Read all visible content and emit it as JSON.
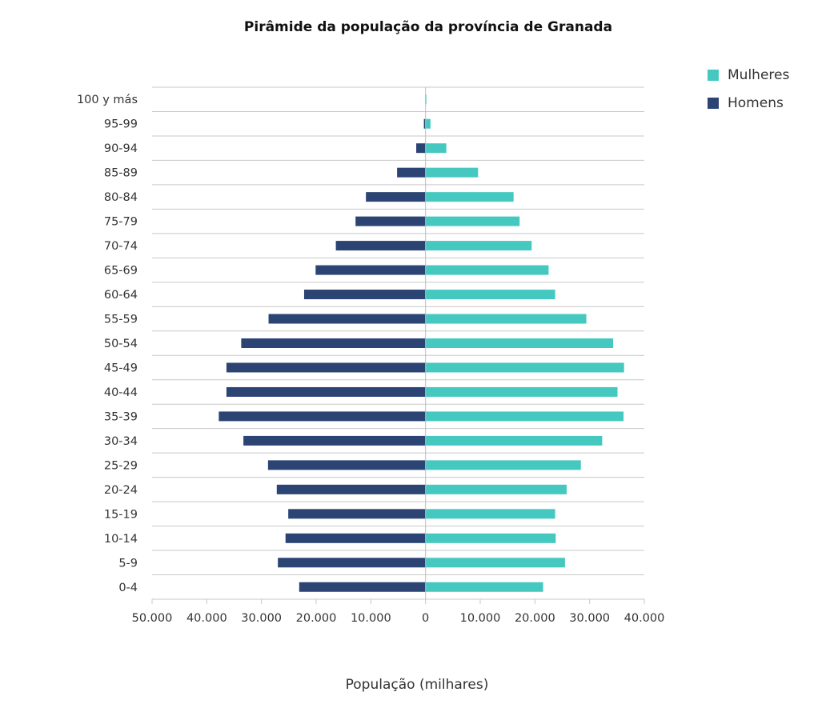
{
  "chart_data": {
    "type": "bar",
    "orientation": "horizontal",
    "subtype": "population-pyramid",
    "title": "Pirâmide da população da província de Granada",
    "xlabel": "População (milhares)",
    "ylabel": "",
    "categories": [
      "0-4",
      "5-9",
      "10-14",
      "15-19",
      "20-24",
      "25-29",
      "30-34",
      "35-39",
      "40-44",
      "45-49",
      "50-54",
      "55-59",
      "60-64",
      "65-69",
      "70-74",
      "75-79",
      "80-84",
      "85-89",
      "90-94",
      "95-99",
      "100 y más"
    ],
    "series": [
      {
        "name": "Mulheres",
        "color": "#45c8c0",
        "side": "right",
        "values": [
          21500,
          25500,
          23800,
          23700,
          25800,
          28400,
          32300,
          36200,
          35100,
          36300,
          34300,
          29400,
          23700,
          22500,
          19400,
          17200,
          16100,
          9600,
          3800,
          900,
          150
        ]
      },
      {
        "name": "Homens",
        "color": "#2b4473",
        "side": "left",
        "values": [
          23100,
          27000,
          25600,
          25100,
          27200,
          28800,
          33300,
          37800,
          36400,
          36400,
          33700,
          28700,
          22200,
          20100,
          16400,
          12800,
          10900,
          5200,
          1700,
          300,
          50
        ]
      }
    ],
    "xlim": [
      -50000,
      40000
    ],
    "xticks": [
      -50000,
      -40000,
      -30000,
      -20000,
      -10000,
      0,
      10000,
      20000,
      30000,
      40000
    ],
    "xtick_labels": [
      "50.000",
      "40.000",
      "30.000",
      "20.000",
      "10.000",
      "0",
      "10.000",
      "20.000",
      "30.000",
      "40.000"
    ],
    "grid": "horizontal",
    "legend_position": "top-right"
  }
}
